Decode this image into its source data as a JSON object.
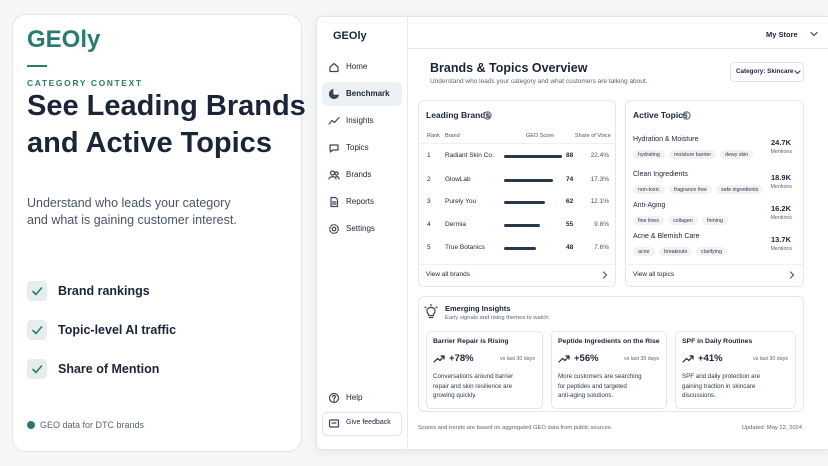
{
  "promo": {
    "brand": "GEOly",
    "eyebrow": "CATEGORY CONTEXT",
    "headline": [
      "See Leading Brands",
      "and Active Topics"
    ],
    "description": [
      "Understand who leads your category",
      "and what is gaining customer interest."
    ],
    "features": [
      "Brand rankings",
      "Topic-level AI traffic",
      "Share of Mention"
    ],
    "footer": "GEO data for DTC brands"
  },
  "app": {
    "logo": "GEOly",
    "store": "My Store",
    "nav": [
      "Home",
      "Benchmark",
      "Insights",
      "Topics",
      "Brands",
      "Reports",
      "Settings"
    ],
    "active_nav": 1,
    "bottom_nav": [
      "Help",
      "Give feedback"
    ],
    "page_title": "Brands & Topics Overview",
    "page_subtitle": "Understand who leads your category and what customers are talking about.",
    "category_filter": "Category: Skincare",
    "leading_brands": {
      "title": "Leading Brands",
      "columns": [
        "Rank",
        "Brand",
        "GEO Score",
        "Share of Voice"
      ],
      "rows": [
        [
          1,
          "Radiant Skin Co.",
          88,
          "22.4%"
        ],
        [
          2,
          "GlowLab",
          74,
          "17.3%"
        ],
        [
          3,
          "Purely You",
          62,
          "12.1%"
        ],
        [
          4,
          "Dermia",
          55,
          "9.8%"
        ],
        [
          5,
          "True Botanics",
          48,
          "7.6%"
        ]
      ],
      "link": "View all brands"
    },
    "active_topics": {
      "title": "Active Topics",
      "topics": [
        {
          "name": "Hydration & Moisture",
          "tags": [
            "hydrating",
            "moisture barrier",
            "dewy skin"
          ],
          "mentions": "24.7K",
          "mentions_label": "Mentions"
        },
        {
          "name": "Clean Ingredients",
          "tags": [
            "non-toxic",
            "fragrance free",
            "safe ingredients"
          ],
          "mentions": "18.9K",
          "mentions_label": "Mentions"
        },
        {
          "name": "Anti-Aging",
          "tags": [
            "fine lines",
            "collagen",
            "firming"
          ],
          "mentions": "16.2K",
          "mentions_label": "Mentions"
        },
        {
          "name": "Acne & Blemish Care",
          "tags": [
            "acne",
            "breakouts",
            "clarifying"
          ],
          "mentions": "13.7K",
          "mentions_label": "Mentions"
        }
      ],
      "link": "View all topics"
    },
    "emerging_insights": {
      "title": "Emerging Insights",
      "subtitle": "Early signals and rising themes to watch.",
      "cards": [
        {
          "title": "Barrier Repair is Rising",
          "change": "+78%",
          "period": "vs last 30 days",
          "description": [
            "Conversations around barrier",
            "repair and skin resilience are",
            "growing quickly."
          ]
        },
        {
          "title": "Peptide Ingredients on the Rise",
          "change": "+56%",
          "period": "vs last 30 days",
          "description": [
            "More customers are searching",
            "for peptides and targeted",
            "anti-aging solutions."
          ]
        },
        {
          "title": "SPF in Daily Routines",
          "change": "+41%",
          "period": "vs last 30 days",
          "description": [
            "SPF and daily protection are",
            "gaining traction in skincare",
            "discussions."
          ]
        }
      ]
    },
    "footnote": "Scores and trends are based on aggregated GEO data from public sources.",
    "updated": "Updated: May 12, 2024"
  }
}
